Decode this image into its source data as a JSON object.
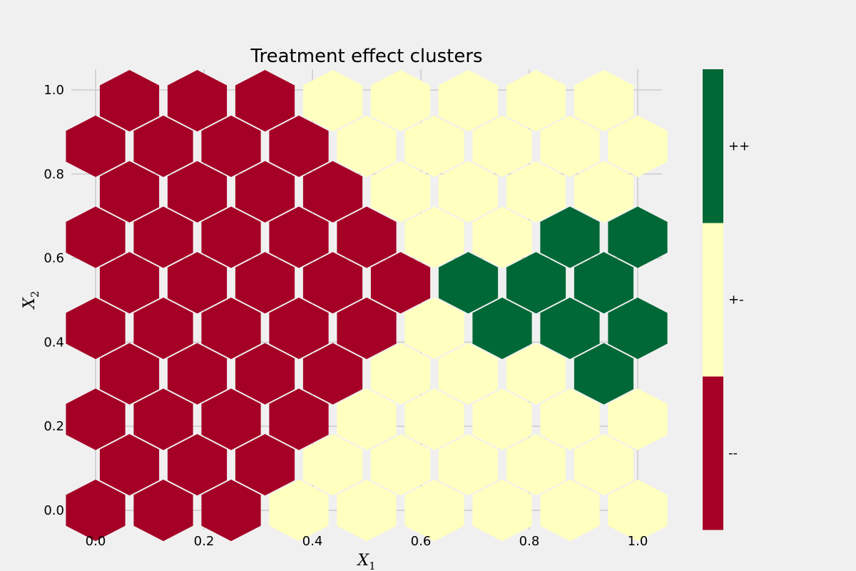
{
  "chart_data": {
    "type": "heatmap",
    "subtype": "hexbin",
    "title": "Treatment effect clusters",
    "xlabel": {
      "base": "X",
      "sub": "1"
    },
    "ylabel": {
      "base": "X",
      "sub": "2"
    },
    "xlim": [
      -0.05,
      1.05
    ],
    "ylim": [
      -0.05,
      1.05
    ],
    "xticks": [
      "0.0",
      "0.2",
      "0.4",
      "0.6",
      "0.8",
      "1.0"
    ],
    "yticks": [
      "0.0",
      "0.2",
      "0.4",
      "0.6",
      "0.8",
      "1.0"
    ],
    "grid": true,
    "hex_grid": {
      "nx": 8,
      "x_range": [
        0,
        1
      ],
      "y_range": [
        0,
        1
      ]
    },
    "boundary": {
      "description": "cluster is '--' below left line, '++' right of right lines, '+-' otherwise",
      "left_lines": [
        {
          "point": [
            0.3,
            1.0
          ],
          "apex": [
            0.62,
            0.5
          ]
        },
        {
          "point": [
            0.3,
            0.0
          ],
          "apex": [
            0.62,
            0.5
          ]
        }
      ],
      "green_region": {
        "x_min": 0.62,
        "center": [
          0.88,
          0.5
        ]
      }
    },
    "colorbar": {
      "categories": [
        "--",
        "+-",
        "++"
      ],
      "colors": [
        "#a50026",
        "#ffffbf",
        "#006837"
      ]
    }
  }
}
